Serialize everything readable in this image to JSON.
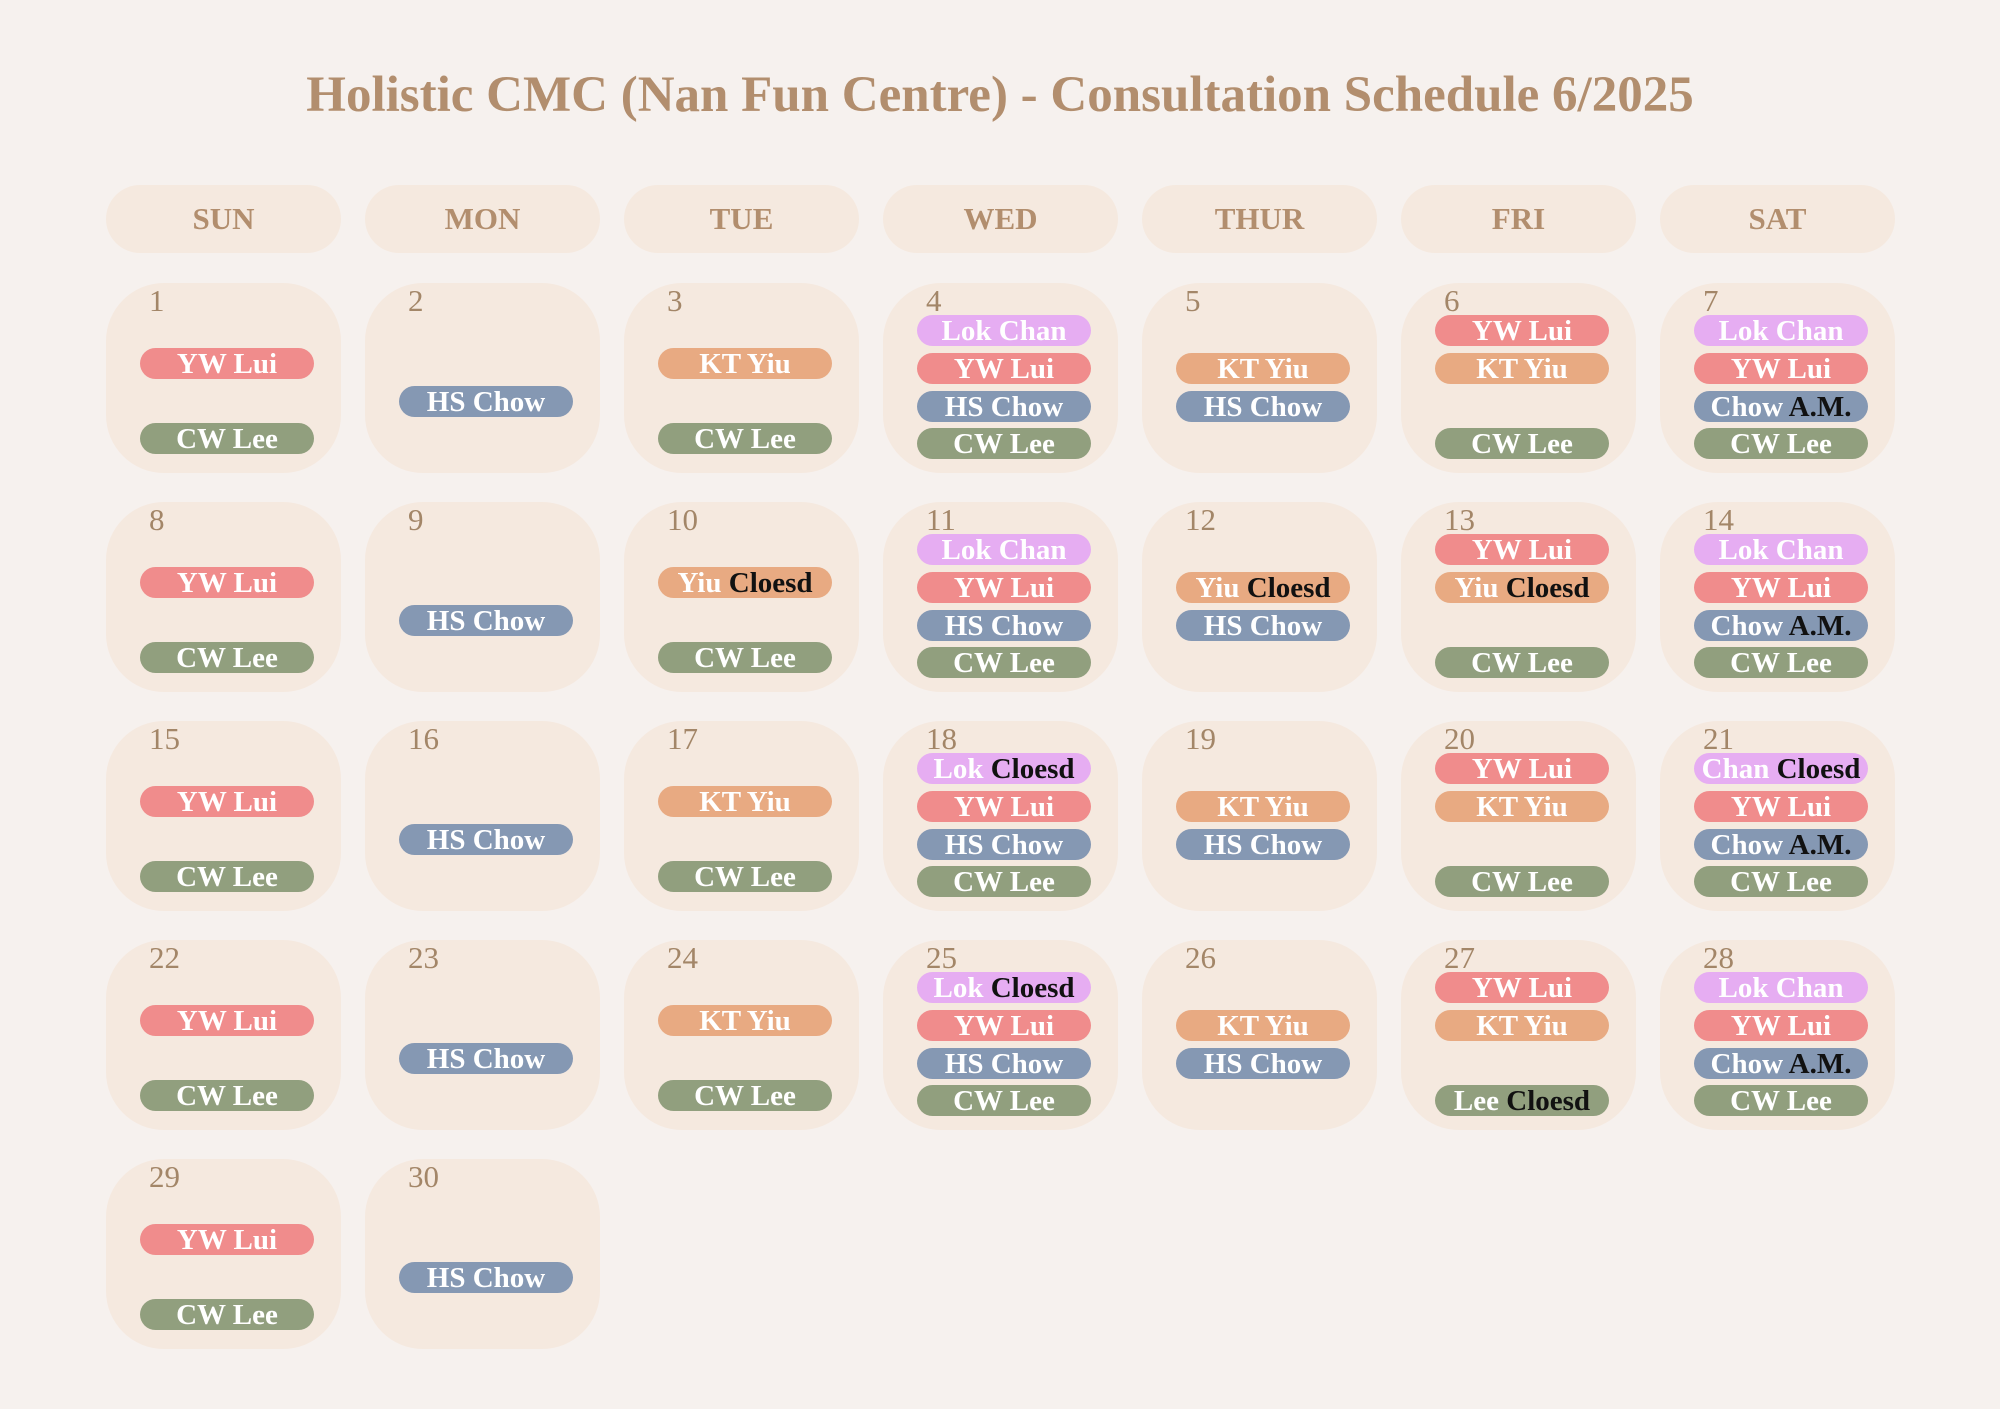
{
  "title": "Holistic CMC (Nan Fun Centre) - Consultation Schedule 6/2025",
  "colors": {
    "pink": "#f08c8c",
    "orange": "#e8aa82",
    "blue": "#8598b3",
    "green": "#919f7e",
    "lilac": "#e6adf2",
    "header_text": "#b28e6e"
  },
  "weekdays": [
    "SUN",
    "MON",
    "TUE",
    "WED",
    "THUR",
    "FRI",
    "SAT"
  ],
  "days": [
    {
      "day": "1",
      "layout": "two",
      "entries": [
        {
          "name": "YW Lui",
          "color": "pink"
        },
        {
          "name": "CW Lee",
          "color": "green"
        }
      ]
    },
    {
      "day": "2",
      "layout": "one",
      "entries": [
        {
          "name": "HS Chow",
          "color": "blue"
        }
      ]
    },
    {
      "day": "3",
      "layout": "two",
      "entries": [
        {
          "name": "KT Yiu",
          "color": "orange"
        },
        {
          "name": "CW Lee",
          "color": "green"
        }
      ]
    },
    {
      "day": "4",
      "layout": "four",
      "entries": [
        {
          "name": "Lok Chan",
          "color": "lilac"
        },
        {
          "name": "YW Lui",
          "color": "pink"
        },
        {
          "name": "HS Chow",
          "color": "blue"
        },
        {
          "name": "CW Lee",
          "color": "green"
        }
      ]
    },
    {
      "day": "5",
      "layout": "mid",
      "entries": [
        {
          "name": "KT Yiu",
          "color": "orange"
        },
        {
          "name": "HS Chow",
          "color": "blue"
        }
      ]
    },
    {
      "day": "6",
      "layout": "three",
      "entries": [
        {
          "name": "YW Lui",
          "color": "pink"
        },
        {
          "name": "KT Yiu",
          "color": "orange"
        },
        {
          "name": "CW Lee",
          "color": "green"
        }
      ]
    },
    {
      "day": "7",
      "layout": "four",
      "entries": [
        {
          "name": "Lok Chan",
          "color": "lilac"
        },
        {
          "name": "YW Lui",
          "color": "pink"
        },
        {
          "name": "Chow",
          "suffix": "A.M.",
          "color": "blue"
        },
        {
          "name": "CW Lee",
          "color": "green"
        }
      ]
    },
    {
      "day": "8",
      "layout": "two",
      "entries": [
        {
          "name": "YW Lui",
          "color": "pink"
        },
        {
          "name": "CW Lee",
          "color": "green"
        }
      ]
    },
    {
      "day": "9",
      "layout": "one",
      "entries": [
        {
          "name": "HS Chow",
          "color": "blue"
        }
      ]
    },
    {
      "day": "10",
      "layout": "two",
      "entries": [
        {
          "name": "Yiu",
          "suffix": "Cloesd",
          "color": "orange"
        },
        {
          "name": "CW Lee",
          "color": "green"
        }
      ]
    },
    {
      "day": "11",
      "layout": "four",
      "entries": [
        {
          "name": "Lok Chan",
          "color": "lilac"
        },
        {
          "name": "YW Lui",
          "color": "pink"
        },
        {
          "name": "HS Chow",
          "color": "blue"
        },
        {
          "name": "CW Lee",
          "color": "green"
        }
      ]
    },
    {
      "day": "12",
      "layout": "mid",
      "entries": [
        {
          "name": "Yiu",
          "suffix": "Cloesd",
          "color": "orange"
        },
        {
          "name": "HS Chow",
          "color": "blue"
        }
      ]
    },
    {
      "day": "13",
      "layout": "three",
      "entries": [
        {
          "name": "YW Lui",
          "color": "pink"
        },
        {
          "name": "Yiu",
          "suffix": "Cloesd",
          "color": "orange"
        },
        {
          "name": "CW Lee",
          "color": "green"
        }
      ]
    },
    {
      "day": "14",
      "layout": "four",
      "entries": [
        {
          "name": "Lok Chan",
          "color": "lilac"
        },
        {
          "name": "YW Lui",
          "color": "pink"
        },
        {
          "name": "Chow",
          "suffix": "A.M.",
          "color": "blue"
        },
        {
          "name": "CW Lee",
          "color": "green"
        }
      ]
    },
    {
      "day": "15",
      "layout": "two",
      "entries": [
        {
          "name": "YW Lui",
          "color": "pink"
        },
        {
          "name": "CW Lee",
          "color": "green"
        }
      ]
    },
    {
      "day": "16",
      "layout": "one",
      "entries": [
        {
          "name": "HS Chow",
          "color": "blue"
        }
      ]
    },
    {
      "day": "17",
      "layout": "two",
      "entries": [
        {
          "name": "KT Yiu",
          "color": "orange"
        },
        {
          "name": "CW Lee",
          "color": "green"
        }
      ]
    },
    {
      "day": "18",
      "layout": "four",
      "entries": [
        {
          "name": "Lok",
          "suffix": "Cloesd",
          "color": "lilac"
        },
        {
          "name": "YW Lui",
          "color": "pink"
        },
        {
          "name": "HS Chow",
          "color": "blue"
        },
        {
          "name": "CW Lee",
          "color": "green"
        }
      ]
    },
    {
      "day": "19",
      "layout": "mid",
      "entries": [
        {
          "name": "KT Yiu",
          "color": "orange"
        },
        {
          "name": "HS Chow",
          "color": "blue"
        }
      ]
    },
    {
      "day": "20",
      "layout": "three",
      "entries": [
        {
          "name": "YW Lui",
          "color": "pink"
        },
        {
          "name": "KT Yiu",
          "color": "orange"
        },
        {
          "name": "CW Lee",
          "color": "green"
        }
      ]
    },
    {
      "day": "21",
      "layout": "four",
      "entries": [
        {
          "name": "Chan",
          "suffix": "Cloesd",
          "color": "lilac"
        },
        {
          "name": "YW Lui",
          "color": "pink"
        },
        {
          "name": "Chow",
          "suffix": "A.M.",
          "color": "blue"
        },
        {
          "name": "CW Lee",
          "color": "green"
        }
      ]
    },
    {
      "day": "22",
      "layout": "two",
      "entries": [
        {
          "name": "YW Lui",
          "color": "pink"
        },
        {
          "name": "CW Lee",
          "color": "green"
        }
      ]
    },
    {
      "day": "23",
      "layout": "one",
      "entries": [
        {
          "name": "HS Chow",
          "color": "blue"
        }
      ]
    },
    {
      "day": "24",
      "layout": "two",
      "entries": [
        {
          "name": "KT Yiu",
          "color": "orange"
        },
        {
          "name": "CW Lee",
          "color": "green"
        }
      ]
    },
    {
      "day": "25",
      "layout": "four",
      "entries": [
        {
          "name": "Lok",
          "suffix": "Cloesd",
          "color": "lilac"
        },
        {
          "name": "YW Lui",
          "color": "pink"
        },
        {
          "name": "HS Chow",
          "color": "blue"
        },
        {
          "name": "CW Lee",
          "color": "green"
        }
      ]
    },
    {
      "day": "26",
      "layout": "mid",
      "entries": [
        {
          "name": "KT Yiu",
          "color": "orange"
        },
        {
          "name": "HS Chow",
          "color": "blue"
        }
      ]
    },
    {
      "day": "27",
      "layout": "three",
      "entries": [
        {
          "name": "YW Lui",
          "color": "pink"
        },
        {
          "name": "KT Yiu",
          "color": "orange"
        },
        {
          "name": "Lee",
          "suffix": "Cloesd",
          "color": "green"
        }
      ]
    },
    {
      "day": "28",
      "layout": "four",
      "entries": [
        {
          "name": "Lok Chan",
          "color": "lilac"
        },
        {
          "name": "YW Lui",
          "color": "pink"
        },
        {
          "name": "Chow",
          "suffix": "A.M.",
          "color": "blue"
        },
        {
          "name": "CW Lee",
          "color": "green"
        }
      ]
    },
    {
      "day": "29",
      "layout": "two",
      "entries": [
        {
          "name": "YW Lui",
          "color": "pink"
        },
        {
          "name": "CW Lee",
          "color": "green"
        }
      ]
    },
    {
      "day": "30",
      "layout": "one",
      "entries": [
        {
          "name": "HS Chow",
          "color": "blue"
        }
      ]
    }
  ]
}
